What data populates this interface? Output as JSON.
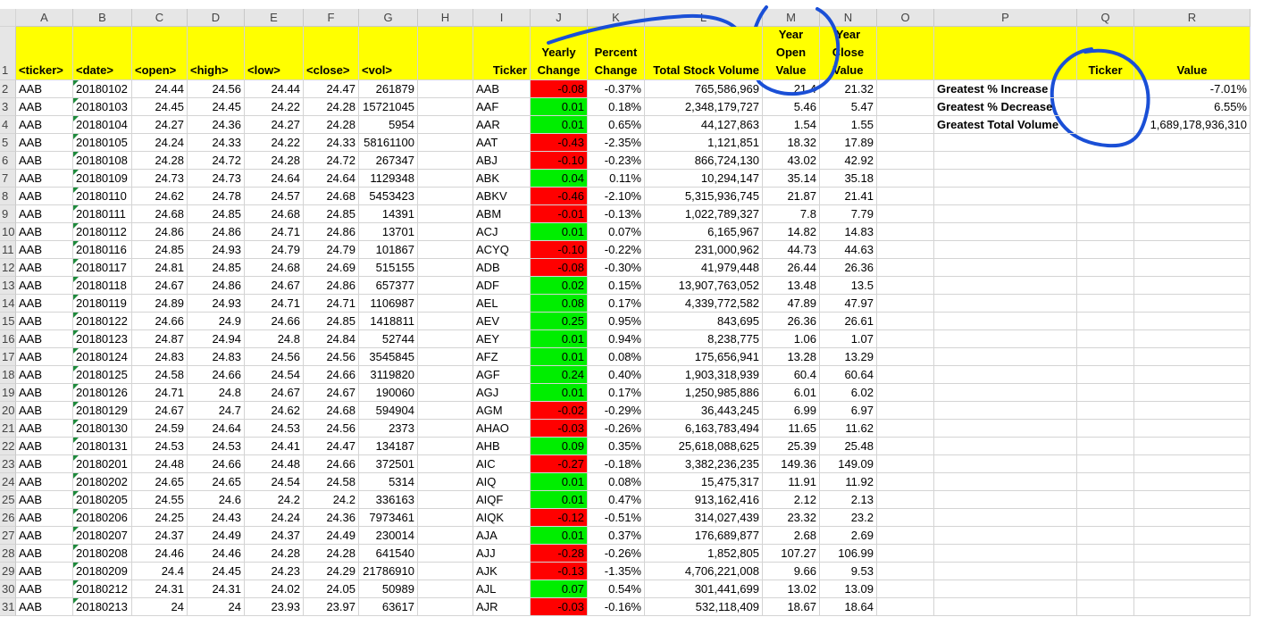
{
  "column_letters": [
    "A",
    "B",
    "C",
    "D",
    "E",
    "F",
    "G",
    "H",
    "I",
    "J",
    "K",
    "L",
    "M",
    "N",
    "O",
    "P",
    "Q",
    "R"
  ],
  "header_row_number": "1",
  "headers": {
    "A": [
      "<ticker>"
    ],
    "B": [
      "<date>"
    ],
    "C": [
      "<open>"
    ],
    "D": [
      "<high>"
    ],
    "E": [
      "<low>"
    ],
    "F": [
      "<close>"
    ],
    "G": [
      "<vol>"
    ],
    "H": [
      ""
    ],
    "I": [
      "Ticker"
    ],
    "J": [
      "Yearly",
      "Change"
    ],
    "K": [
      "Percent",
      "Change"
    ],
    "L": [
      "Total Stock Volume"
    ],
    "M": [
      "Year",
      "Open",
      "Value"
    ],
    "N": [
      "Year",
      "Close",
      "Value"
    ],
    "O": [
      ""
    ],
    "P": [
      ""
    ],
    "Q": [
      "Ticker"
    ],
    "R": [
      "Value"
    ]
  },
  "rows": [
    {
      "n": "2",
      "A": "AAB",
      "B": "20180102",
      "C": "24.44",
      "D": "24.56",
      "E": "24.44",
      "F": "24.47",
      "G": "261879",
      "I": "AAB",
      "J": "-0.08",
      "K": "-0.37%",
      "L": "765,586,969",
      "M": "21.4",
      "N": "21.32"
    },
    {
      "n": "3",
      "A": "AAB",
      "B": "20180103",
      "C": "24.45",
      "D": "24.45",
      "E": "24.22",
      "F": "24.28",
      "G": "15721045",
      "I": "AAF",
      "J": "0.01",
      "K": "0.18%",
      "L": "2,348,179,727",
      "M": "5.46",
      "N": "5.47"
    },
    {
      "n": "4",
      "A": "AAB",
      "B": "20180104",
      "C": "24.27",
      "D": "24.36",
      "E": "24.27",
      "F": "24.28",
      "G": "5954",
      "I": "AAR",
      "J": "0.01",
      "K": "0.65%",
      "L": "44,127,863",
      "M": "1.54",
      "N": "1.55"
    },
    {
      "n": "5",
      "A": "AAB",
      "B": "20180105",
      "C": "24.24",
      "D": "24.33",
      "E": "24.22",
      "F": "24.33",
      "G": "58161100",
      "I": "AAT",
      "J": "-0.43",
      "K": "-2.35%",
      "L": "1,121,851",
      "M": "18.32",
      "N": "17.89"
    },
    {
      "n": "6",
      "A": "AAB",
      "B": "20180108",
      "C": "24.28",
      "D": "24.72",
      "E": "24.28",
      "F": "24.72",
      "G": "267347",
      "I": "ABJ",
      "J": "-0.10",
      "K": "-0.23%",
      "L": "866,724,130",
      "M": "43.02",
      "N": "42.92"
    },
    {
      "n": "7",
      "A": "AAB",
      "B": "20180109",
      "C": "24.73",
      "D": "24.73",
      "E": "24.64",
      "F": "24.64",
      "G": "1129348",
      "I": "ABK",
      "J": "0.04",
      "K": "0.11%",
      "L": "10,294,147",
      "M": "35.14",
      "N": "35.18"
    },
    {
      "n": "8",
      "A": "AAB",
      "B": "20180110",
      "C": "24.62",
      "D": "24.78",
      "E": "24.57",
      "F": "24.68",
      "G": "5453423",
      "I": "ABKV",
      "J": "-0.46",
      "K": "-2.10%",
      "L": "5,315,936,745",
      "M": "21.87",
      "N": "21.41"
    },
    {
      "n": "9",
      "A": "AAB",
      "B": "20180111",
      "C": "24.68",
      "D": "24.85",
      "E": "24.68",
      "F": "24.85",
      "G": "14391",
      "I": "ABM",
      "J": "-0.01",
      "K": "-0.13%",
      "L": "1,022,789,327",
      "M": "7.8",
      "N": "7.79"
    },
    {
      "n": "10",
      "A": "AAB",
      "B": "20180112",
      "C": "24.86",
      "D": "24.86",
      "E": "24.71",
      "F": "24.86",
      "G": "13701",
      "I": "ACJ",
      "J": "0.01",
      "K": "0.07%",
      "L": "6,165,967",
      "M": "14.82",
      "N": "14.83"
    },
    {
      "n": "11",
      "A": "AAB",
      "B": "20180116",
      "C": "24.85",
      "D": "24.93",
      "E": "24.79",
      "F": "24.79",
      "G": "101867",
      "I": "ACYQ",
      "J": "-0.10",
      "K": "-0.22%",
      "L": "231,000,962",
      "M": "44.73",
      "N": "44.63"
    },
    {
      "n": "12",
      "A": "AAB",
      "B": "20180117",
      "C": "24.81",
      "D": "24.85",
      "E": "24.68",
      "F": "24.69",
      "G": "515155",
      "I": "ADB",
      "J": "-0.08",
      "K": "-0.30%",
      "L": "41,979,448",
      "M": "26.44",
      "N": "26.36"
    },
    {
      "n": "13",
      "A": "AAB",
      "B": "20180118",
      "C": "24.67",
      "D": "24.86",
      "E": "24.67",
      "F": "24.86",
      "G": "657377",
      "I": "ADF",
      "J": "0.02",
      "K": "0.15%",
      "L": "13,907,763,052",
      "M": "13.48",
      "N": "13.5"
    },
    {
      "n": "14",
      "A": "AAB",
      "B": "20180119",
      "C": "24.89",
      "D": "24.93",
      "E": "24.71",
      "F": "24.71",
      "G": "1106987",
      "I": "AEL",
      "J": "0.08",
      "K": "0.17%",
      "L": "4,339,772,582",
      "M": "47.89",
      "N": "47.97"
    },
    {
      "n": "15",
      "A": "AAB",
      "B": "20180122",
      "C": "24.66",
      "D": "24.9",
      "E": "24.66",
      "F": "24.85",
      "G": "1418811",
      "I": "AEV",
      "J": "0.25",
      "K": "0.95%",
      "L": "843,695",
      "M": "26.36",
      "N": "26.61"
    },
    {
      "n": "16",
      "A": "AAB",
      "B": "20180123",
      "C": "24.87",
      "D": "24.94",
      "E": "24.8",
      "F": "24.84",
      "G": "52744",
      "I": "AEY",
      "J": "0.01",
      "K": "0.94%",
      "L": "8,238,775",
      "M": "1.06",
      "N": "1.07"
    },
    {
      "n": "17",
      "A": "AAB",
      "B": "20180124",
      "C": "24.83",
      "D": "24.83",
      "E": "24.56",
      "F": "24.56",
      "G": "3545845",
      "I": "AFZ",
      "J": "0.01",
      "K": "0.08%",
      "L": "175,656,941",
      "M": "13.28",
      "N": "13.29"
    },
    {
      "n": "18",
      "A": "AAB",
      "B": "20180125",
      "C": "24.58",
      "D": "24.66",
      "E": "24.54",
      "F": "24.66",
      "G": "3119820",
      "I": "AGF",
      "J": "0.24",
      "K": "0.40%",
      "L": "1,903,318,939",
      "M": "60.4",
      "N": "60.64"
    },
    {
      "n": "19",
      "A": "AAB",
      "B": "20180126",
      "C": "24.71",
      "D": "24.8",
      "E": "24.67",
      "F": "24.67",
      "G": "190060",
      "I": "AGJ",
      "J": "0.01",
      "K": "0.17%",
      "L": "1,250,985,886",
      "M": "6.01",
      "N": "6.02"
    },
    {
      "n": "20",
      "A": "AAB",
      "B": "20180129",
      "C": "24.67",
      "D": "24.7",
      "E": "24.62",
      "F": "24.68",
      "G": "594904",
      "I": "AGM",
      "J": "-0.02",
      "K": "-0.29%",
      "L": "36,443,245",
      "M": "6.99",
      "N": "6.97"
    },
    {
      "n": "21",
      "A": "AAB",
      "B": "20180130",
      "C": "24.59",
      "D": "24.64",
      "E": "24.53",
      "F": "24.56",
      "G": "2373",
      "I": "AHAO",
      "J": "-0.03",
      "K": "-0.26%",
      "L": "6,163,783,494",
      "M": "11.65",
      "N": "11.62"
    },
    {
      "n": "22",
      "A": "AAB",
      "B": "20180131",
      "C": "24.53",
      "D": "24.53",
      "E": "24.41",
      "F": "24.47",
      "G": "134187",
      "I": "AHB",
      "J": "0.09",
      "K": "0.35%",
      "L": "25,618,088,625",
      "M": "25.39",
      "N": "25.48"
    },
    {
      "n": "23",
      "A": "AAB",
      "B": "20180201",
      "C": "24.48",
      "D": "24.66",
      "E": "24.48",
      "F": "24.66",
      "G": "372501",
      "I": "AIC",
      "J": "-0.27",
      "K": "-0.18%",
      "L": "3,382,236,235",
      "M": "149.36",
      "N": "149.09"
    },
    {
      "n": "24",
      "A": "AAB",
      "B": "20180202",
      "C": "24.65",
      "D": "24.65",
      "E": "24.54",
      "F": "24.58",
      "G": "5314",
      "I": "AIQ",
      "J": "0.01",
      "K": "0.08%",
      "L": "15,475,317",
      "M": "11.91",
      "N": "11.92"
    },
    {
      "n": "25",
      "A": "AAB",
      "B": "20180205",
      "C": "24.55",
      "D": "24.6",
      "E": "24.2",
      "F": "24.2",
      "G": "336163",
      "I": "AIQF",
      "J": "0.01",
      "K": "0.47%",
      "L": "913,162,416",
      "M": "2.12",
      "N": "2.13"
    },
    {
      "n": "26",
      "A": "AAB",
      "B": "20180206",
      "C": "24.25",
      "D": "24.43",
      "E": "24.24",
      "F": "24.36",
      "G": "7973461",
      "I": "AIQK",
      "J": "-0.12",
      "K": "-0.51%",
      "L": "314,027,439",
      "M": "23.32",
      "N": "23.2"
    },
    {
      "n": "27",
      "A": "AAB",
      "B": "20180207",
      "C": "24.37",
      "D": "24.49",
      "E": "24.37",
      "F": "24.49",
      "G": "230014",
      "I": "AJA",
      "J": "0.01",
      "K": "0.37%",
      "L": "176,689,877",
      "M": "2.68",
      "N": "2.69"
    },
    {
      "n": "28",
      "A": "AAB",
      "B": "20180208",
      "C": "24.46",
      "D": "24.46",
      "E": "24.28",
      "F": "24.28",
      "G": "641540",
      "I": "AJJ",
      "J": "-0.28",
      "K": "-0.26%",
      "L": "1,852,805",
      "M": "107.27",
      "N": "106.99"
    },
    {
      "n": "29",
      "A": "AAB",
      "B": "20180209",
      "C": "24.4",
      "D": "24.45",
      "E": "24.23",
      "F": "24.29",
      "G": "21786910",
      "I": "AJK",
      "J": "-0.13",
      "K": "-1.35%",
      "L": "4,706,221,008",
      "M": "9.66",
      "N": "9.53"
    },
    {
      "n": "30",
      "A": "AAB",
      "B": "20180212",
      "C": "24.31",
      "D": "24.31",
      "E": "24.02",
      "F": "24.05",
      "G": "50989",
      "I": "AJL",
      "J": "0.07",
      "K": "0.54%",
      "L": "301,441,699",
      "M": "13.02",
      "N": "13.09"
    },
    {
      "n": "31",
      "A": "AAB",
      "B": "20180213",
      "C": "24",
      "D": "24",
      "E": "23.93",
      "F": "23.97",
      "G": "63617",
      "I": "AJR",
      "J": "-0.03",
      "K": "-0.16%",
      "L": "532,118,409",
      "M": "18.67",
      "N": "18.64"
    }
  ],
  "summary": [
    {
      "label": "Greatest % Increase",
      "ticker": "",
      "value": "-7.01%"
    },
    {
      "label": "Greatest % Decrease",
      "ticker": "",
      "value": "6.55%"
    },
    {
      "label": "Greatest Total Volume",
      "ticker": "",
      "value": "1,689,178,936,310"
    }
  ],
  "colors": {
    "header_fill": "#ffff00",
    "negative_fill": "#ff0000",
    "positive_fill": "#00ee00",
    "annotation_ink": "#1a4fd6",
    "gridline": "#d4d4d4"
  },
  "annotations": [
    "arc-over-total-stock-volume",
    "circle-around-year-open-value",
    "circle-around-summary-ticker-column"
  ]
}
